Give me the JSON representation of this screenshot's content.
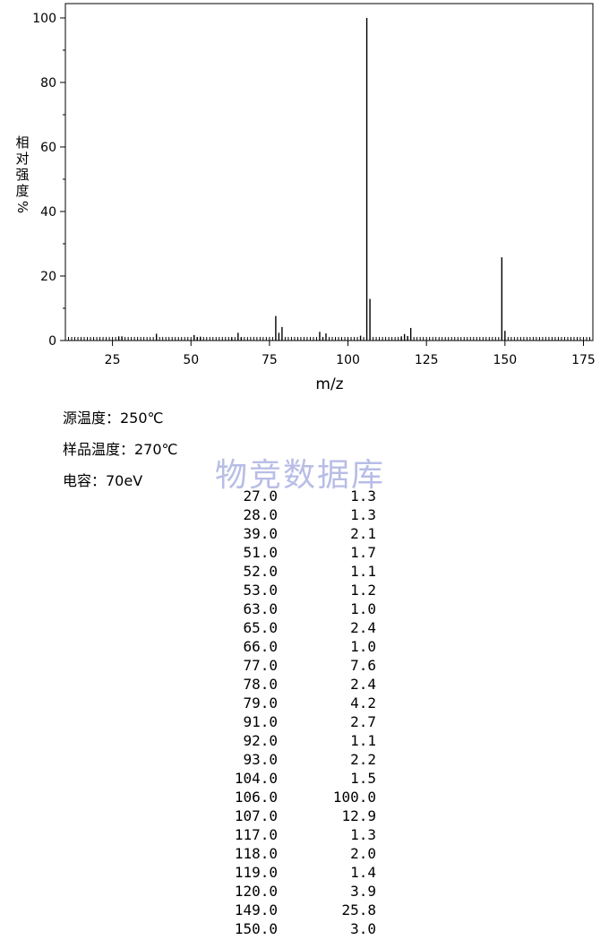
{
  "chart_data": {
    "type": "bar",
    "xlabel": "m/z",
    "ylabel_chars": [
      "相",
      "对",
      "强",
      "度",
      "%"
    ],
    "xlim": [
      10,
      178
    ],
    "ylim": [
      0,
      100
    ],
    "x_ticks": [
      25,
      50,
      75,
      100,
      125,
      150,
      175
    ],
    "y_ticks": [
      0,
      20,
      40,
      60,
      80,
      100
    ],
    "peaks": [
      {
        "mz": 27.0,
        "intensity": 1.3
      },
      {
        "mz": 28.0,
        "intensity": 1.3
      },
      {
        "mz": 39.0,
        "intensity": 2.1
      },
      {
        "mz": 51.0,
        "intensity": 1.7
      },
      {
        "mz": 52.0,
        "intensity": 1.1
      },
      {
        "mz": 53.0,
        "intensity": 1.2
      },
      {
        "mz": 63.0,
        "intensity": 1.0
      },
      {
        "mz": 65.0,
        "intensity": 2.4
      },
      {
        "mz": 66.0,
        "intensity": 1.0
      },
      {
        "mz": 77.0,
        "intensity": 7.6
      },
      {
        "mz": 78.0,
        "intensity": 2.4
      },
      {
        "mz": 79.0,
        "intensity": 4.2
      },
      {
        "mz": 91.0,
        "intensity": 2.7
      },
      {
        "mz": 92.0,
        "intensity": 1.1
      },
      {
        "mz": 93.0,
        "intensity": 2.2
      },
      {
        "mz": 104.0,
        "intensity": 1.5
      },
      {
        "mz": 106.0,
        "intensity": 100.0
      },
      {
        "mz": 107.0,
        "intensity": 12.9
      },
      {
        "mz": 117.0,
        "intensity": 1.3
      },
      {
        "mz": 118.0,
        "intensity": 2.0
      },
      {
        "mz": 119.0,
        "intensity": 1.4
      },
      {
        "mz": 120.0,
        "intensity": 3.9
      },
      {
        "mz": 149.0,
        "intensity": 25.8
      },
      {
        "mz": 150.0,
        "intensity": 3.0
      }
    ]
  },
  "info": {
    "source_temp": "源温度：250℃",
    "sample_temp": "样品温度：270℃",
    "energy": "电容：70eV"
  },
  "watermark": "物竞数据库",
  "table_rows": [
    [
      "27.0",
      "1.3"
    ],
    [
      "28.0",
      "1.3"
    ],
    [
      "39.0",
      "2.1"
    ],
    [
      "51.0",
      "1.7"
    ],
    [
      "52.0",
      "1.1"
    ],
    [
      "53.0",
      "1.2"
    ],
    [
      "63.0",
      "1.0"
    ],
    [
      "65.0",
      "2.4"
    ],
    [
      "66.0",
      "1.0"
    ],
    [
      "77.0",
      "7.6"
    ],
    [
      "78.0",
      "2.4"
    ],
    [
      "79.0",
      "4.2"
    ],
    [
      "91.0",
      "2.7"
    ],
    [
      "92.0",
      "1.1"
    ],
    [
      "93.0",
      "2.2"
    ],
    [
      "104.0",
      "1.5"
    ],
    [
      "106.0",
      "100.0"
    ],
    [
      "107.0",
      "12.9"
    ],
    [
      "117.0",
      "1.3"
    ],
    [
      "118.0",
      "2.0"
    ],
    [
      "119.0",
      "1.4"
    ],
    [
      "120.0",
      "3.9"
    ],
    [
      "149.0",
      "25.8"
    ],
    [
      "150.0",
      "3.0"
    ]
  ]
}
